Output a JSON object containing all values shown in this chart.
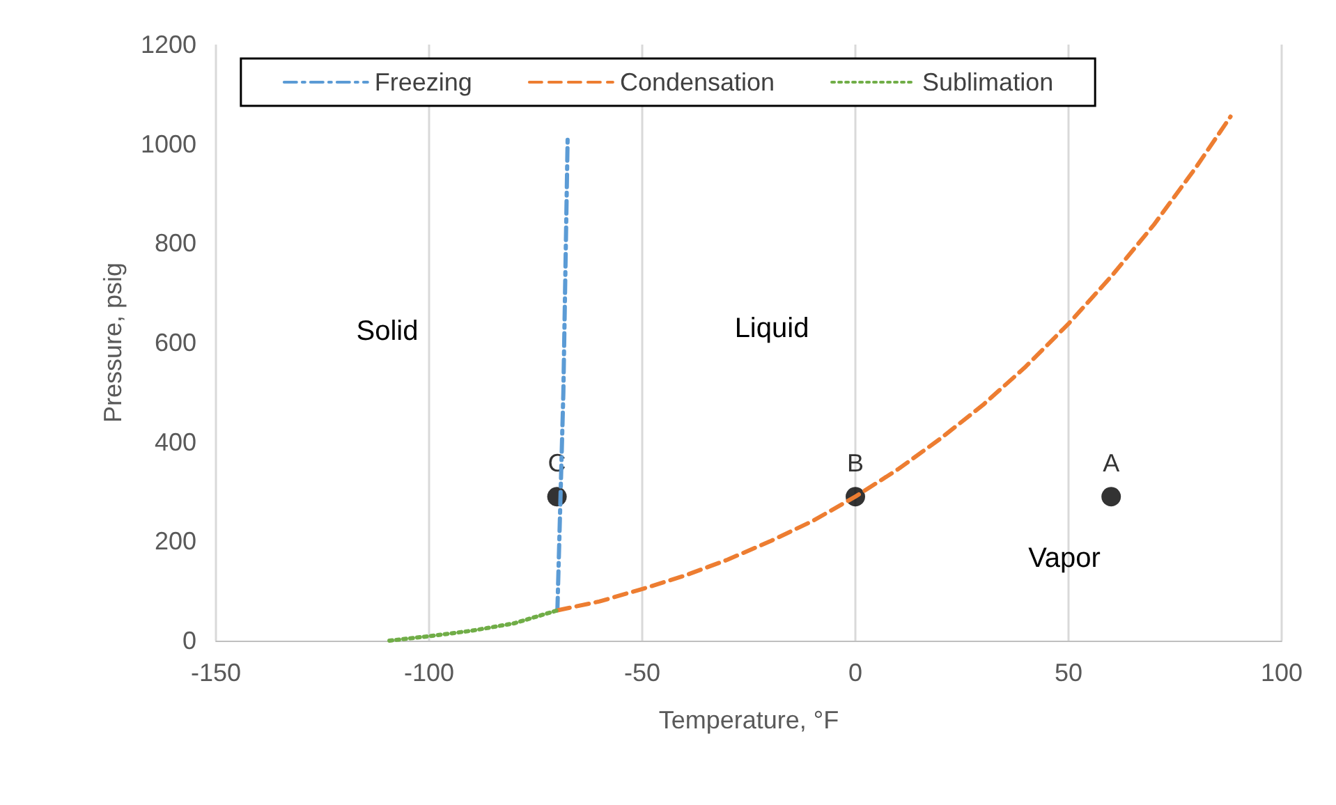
{
  "chart_data": {
    "type": "line",
    "xlabel": "Temperature, °F",
    "ylabel": "Pressure, psig",
    "xlim": [
      -150,
      100
    ],
    "xticks": [
      -150,
      -100,
      -50,
      0,
      50,
      100
    ],
    "ylim": [
      0,
      1200
    ],
    "yticks": [
      0,
      200,
      400,
      600,
      800,
      1000,
      1200
    ],
    "grid": "x",
    "legend": "top",
    "marker": "none",
    "series": [
      {
        "name": "Freezing",
        "color": "#5b9bd5",
        "line_style": "dashdot",
        "x": [
          -69.9,
          -68.5,
          -67.5
        ],
        "values": [
          61,
          500,
          1010
        ]
      },
      {
        "name": "Condensation",
        "color": "#ed7d31",
        "line_style": "dashed",
        "x": [
          -69.9,
          -60,
          -50,
          -40,
          -30,
          -20,
          -10,
          0,
          10,
          20,
          30,
          40,
          50,
          60,
          70,
          80,
          88
        ],
        "values": [
          61,
          79,
          104,
          131,
          163,
          200,
          241,
          290,
          345,
          407,
          475,
          552,
          638,
          733,
          837,
          954,
          1055
        ]
      },
      {
        "name": "Sublimation",
        "color": "#70ad47",
        "line_style": "dotted",
        "x": [
          -109.3,
          -100,
          -90,
          -80,
          -69.9
        ],
        "values": [
          0,
          9,
          20,
          35,
          61
        ]
      },
      {
        "type": "scatter",
        "color": "#000000",
        "marker": "circle",
        "x": [
          -70,
          0,
          60
        ],
        "values": [
          290,
          290,
          290
        ],
        "value_labels": [
          "C",
          "B",
          "A"
        ]
      }
    ],
    "annotations": [
      "Solid",
      "Liquid",
      "Vapor"
    ]
  }
}
